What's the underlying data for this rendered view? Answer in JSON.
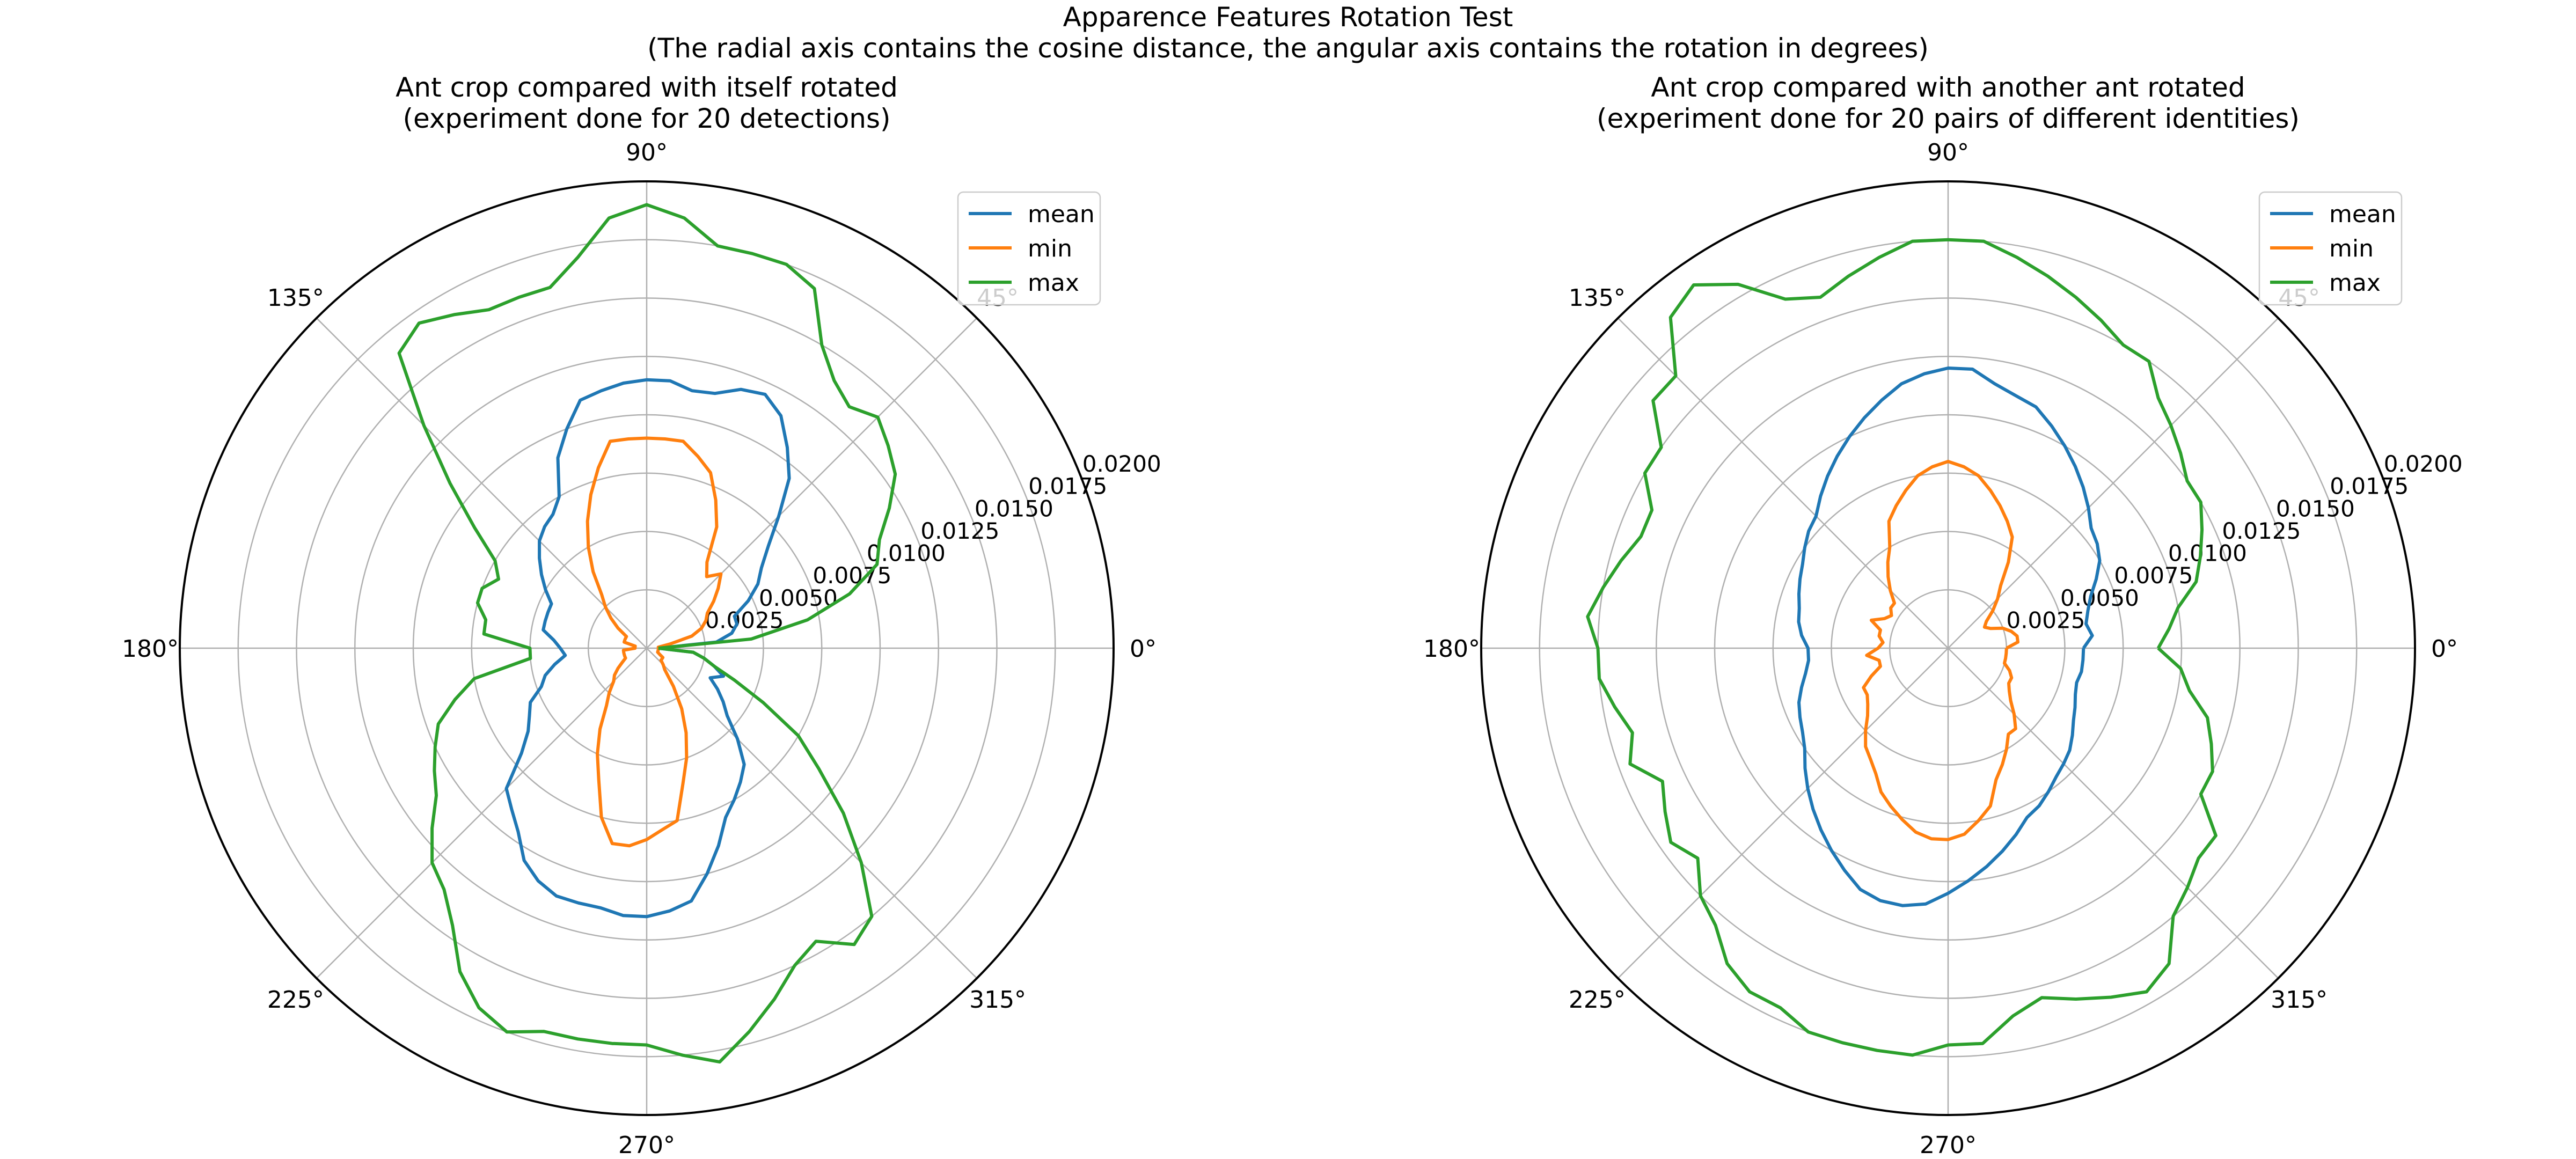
{
  "figure": {
    "title": "Apparence Features Rotation Test",
    "subtitle": "(The radial axis contains the cosine distance, the angular axis contains the rotation in degrees)"
  },
  "chart_data": [
    {
      "type": "line",
      "projection": "polar",
      "title": "Ant crop compared with itself rotated",
      "subtitle": "(experiment done for 20 detections)",
      "angular_ticks": [
        "0°",
        "45°",
        "90°",
        "135°",
        "180°",
        "225°",
        "270°",
        "315°"
      ],
      "radial_ticks": [
        "0.0025",
        "0.0050",
        "0.0075",
        "0.0100",
        "0.0125",
        "0.0150",
        "0.0175",
        "0.0200"
      ],
      "rlim": [
        0,
        0.02
      ],
      "grid": true,
      "legend_position": "upper-right",
      "theta_deg": [
        0,
        5,
        10,
        15,
        20,
        25,
        30,
        35,
        40,
        45,
        50,
        55,
        60,
        65,
        70,
        75,
        80,
        85,
        90,
        95,
        100,
        105,
        110,
        115,
        120,
        125,
        130,
        135,
        140,
        145,
        150,
        155,
        160,
        165,
        170,
        175,
        180,
        185,
        190,
        195,
        200,
        205,
        210,
        215,
        220,
        225,
        230,
        235,
        240,
        245,
        250,
        255,
        260,
        265,
        270,
        275,
        280,
        285,
        290,
        295,
        300,
        305,
        310,
        315,
        320,
        325,
        330,
        335,
        340,
        345,
        350,
        355
      ],
      "series": [
        {
          "name": "mean",
          "color": "#1f77b4",
          "values": [
            0.0005,
            0.003,
            0.0037,
            0.004,
            0.004,
            0.0048,
            0.0055,
            0.006,
            0.0068,
            0.008,
            0.0095,
            0.0105,
            0.0115,
            0.012,
            0.0118,
            0.0113,
            0.0112,
            0.0115,
            0.0115,
            0.0114,
            0.0112,
            0.011,
            0.01,
            0.009,
            0.0075,
            0.007,
            0.0068,
            0.0065,
            0.006,
            0.0055,
            0.005,
            0.0045,
            0.0045,
            0.0045,
            0.0045,
            0.004,
            0.0037,
            0.0035,
            0.004,
            0.0045,
            0.0048,
            0.0055,
            0.0058,
            0.0062,
            0.007,
            0.0085,
            0.009,
            0.0096,
            0.0105,
            0.011,
            0.0113,
            0.0113,
            0.0113,
            0.0115,
            0.0115,
            0.0113,
            0.011,
            0.01,
            0.009,
            0.008,
            0.0075,
            0.007,
            0.0065,
            0.0055,
            0.0045,
            0.004,
            0.0035,
            0.003,
            0.0035,
            0.003,
            0.0025,
            0.002
          ]
        },
        {
          "name": "min",
          "color": "#ff7f0e",
          "values": [
            0.0005,
            0.0005,
            0.001,
            0.002,
            0.0025,
            0.0028,
            0.003,
            0.0035,
            0.004,
            0.0045,
            0.004,
            0.0045,
            0.006,
            0.007,
            0.008,
            0.0085,
            0.009,
            0.009,
            0.009,
            0.009,
            0.009,
            0.008,
            0.007,
            0.006,
            0.005,
            0.004,
            0.003,
            0.0025,
            0.002,
            0.0015,
            0.001,
            0.001,
            0.001,
            0.001,
            0.0005,
            0.0005,
            0.0005,
            0.001,
            0.001,
            0.001,
            0.001,
            0.001,
            0.0012,
            0.0015,
            0.0018,
            0.002,
            0.0025,
            0.003,
            0.004,
            0.005,
            0.006,
            0.0075,
            0.0085,
            0.0085,
            0.0082,
            0.0078,
            0.0075,
            0.006,
            0.005,
            0.004,
            0.003,
            0.002,
            0.0012,
            0.001,
            0.0008,
            0.0008,
            0.0008,
            0.0006,
            0.0005,
            0.0005,
            0.0005,
            0.0005
          ]
        },
        {
          "name": "max",
          "color": "#2ca02c",
          "values": [
            0.0005,
            0.0045,
            0.007,
            0.009,
            0.0105,
            0.011,
            0.012,
            0.013,
            0.0135,
            0.014,
            0.0135,
            0.014,
            0.015,
            0.017,
            0.0175,
            0.0175,
            0.0175,
            0.0185,
            0.019,
            0.0185,
            0.017,
            0.016,
            0.016,
            0.016,
            0.0165,
            0.017,
            0.0165,
            0.0135,
            0.011,
            0.009,
            0.0075,
            0.007,
            0.0075,
            0.0075,
            0.007,
            0.007,
            0.005,
            0.005,
            0.0075,
            0.0085,
            0.0095,
            0.01,
            0.0105,
            0.011,
            0.012,
            0.013,
            0.0135,
            0.0145,
            0.016,
            0.017,
            0.0175,
            0.017,
            0.017,
            0.017,
            0.017,
            0.0175,
            0.018,
            0.017,
            0.016,
            0.015,
            0.0145,
            0.0155,
            0.015,
            0.013,
            0.011,
            0.009,
            0.0075,
            0.0055,
            0.004,
            0.003,
            0.0025,
            0.002
          ]
        }
      ]
    },
    {
      "type": "line",
      "projection": "polar",
      "title": "Ant crop compared with another ant rotated",
      "subtitle": "(experiment done for 20 pairs of different identities)",
      "angular_ticks": [
        "0°",
        "45°",
        "90°",
        "135°",
        "180°",
        "225°",
        "270°",
        "315°"
      ],
      "radial_ticks": [
        "0.0025",
        "0.0050",
        "0.0075",
        "0.0100",
        "0.0125",
        "0.0150",
        "0.0175",
        "0.0200"
      ],
      "rlim": [
        0,
        0.02
      ],
      "grid": true,
      "legend_position": "upper-right",
      "theta_deg": [
        0,
        5,
        10,
        15,
        20,
        25,
        30,
        35,
        40,
        45,
        50,
        55,
        60,
        65,
        70,
        75,
        80,
        85,
        90,
        95,
        100,
        105,
        110,
        115,
        120,
        125,
        130,
        135,
        140,
        145,
        150,
        155,
        160,
        165,
        170,
        175,
        180,
        185,
        190,
        195,
        200,
        205,
        210,
        215,
        220,
        225,
        230,
        235,
        240,
        245,
        250,
        255,
        260,
        265,
        270,
        275,
        280,
        285,
        290,
        295,
        300,
        305,
        310,
        315,
        320,
        325,
        330,
        335,
        340,
        345,
        350,
        355
      ],
      "series": [
        {
          "name": "mean",
          "color": "#1f77b4",
          "values": [
            0.0058,
            0.0062,
            0.006,
            0.0062,
            0.0065,
            0.007,
            0.0075,
            0.0078,
            0.008,
            0.0085,
            0.009,
            0.0095,
            0.01,
            0.0105,
            0.011,
            0.0112,
            0.0115,
            0.012,
            0.012,
            0.0118,
            0.0115,
            0.011,
            0.0105,
            0.01,
            0.0095,
            0.009,
            0.0085,
            0.008,
            0.0078,
            0.0075,
            0.0072,
            0.007,
            0.0068,
            0.0066,
            0.0065,
            0.0063,
            0.006,
            0.006,
            0.0062,
            0.0065,
            0.0068,
            0.007,
            0.0072,
            0.0075,
            0.008,
            0.0085,
            0.009,
            0.0095,
            0.01,
            0.0105,
            0.011,
            0.0112,
            0.0112,
            0.011,
            0.0105,
            0.01,
            0.0095,
            0.009,
            0.0085,
            0.008,
            0.0078,
            0.0075,
            0.0072,
            0.007,
            0.0068,
            0.0065,
            0.0062,
            0.006,
            0.0058,
            0.0057,
            0.0058,
            0.0058
          ]
        },
        {
          "name": "min",
          "color": "#ff7f0e",
          "values": [
            0.0025,
            0.003,
            0.003,
            0.0028,
            0.0025,
            0.002,
            0.0018,
            0.002,
            0.0025,
            0.003,
            0.0035,
            0.0045,
            0.0055,
            0.006,
            0.0065,
            0.007,
            0.0075,
            0.0078,
            0.008,
            0.0078,
            0.0075,
            0.007,
            0.0065,
            0.006,
            0.005,
            0.0045,
            0.004,
            0.0035,
            0.003,
            0.003,
            0.0028,
            0.003,
            0.0035,
            0.003,
            0.003,
            0.0028,
            0.003,
            0.0035,
            0.003,
            0.003,
            0.0035,
            0.004,
            0.004,
            0.0042,
            0.0045,
            0.005,
            0.0055,
            0.0058,
            0.0062,
            0.0068,
            0.0072,
            0.0076,
            0.008,
            0.0082,
            0.0082,
            0.008,
            0.0075,
            0.007,
            0.006,
            0.0055,
            0.005,
            0.0045,
            0.0045,
            0.004,
            0.0035,
            0.0032,
            0.003,
            0.003,
            0.0028,
            0.0025,
            0.0025,
            0.0025
          ]
        },
        {
          "name": "max",
          "color": "#2ca02c",
          "values": [
            0.009,
            0.0095,
            0.01,
            0.011,
            0.0115,
            0.012,
            0.0125,
            0.0125,
            0.013,
            0.0135,
            0.014,
            0.015,
            0.015,
            0.0155,
            0.016,
            0.0165,
            0.017,
            0.0175,
            0.0175,
            0.0175,
            0.017,
            0.0165,
            0.016,
            0.0165,
            0.018,
            0.019,
            0.0185,
            0.0165,
            0.0165,
            0.015,
            0.015,
            0.014,
            0.014,
            0.0145,
            0.015,
            0.0155,
            0.015,
            0.015,
            0.0145,
            0.014,
            0.0145,
            0.0135,
            0.014,
            0.0145,
            0.014,
            0.015,
            0.0155,
            0.0165,
            0.017,
            0.017,
            0.0175,
            0.0175,
            0.0175,
            0.0175,
            0.017,
            0.017,
            0.016,
            0.0155,
            0.016,
            0.0165,
            0.017,
            0.0165,
            0.015,
            0.0145,
            0.014,
            0.014,
            0.0125,
            0.0125,
            0.012,
            0.0115,
            0.0105,
            0.01
          ]
        }
      ]
    }
  ]
}
